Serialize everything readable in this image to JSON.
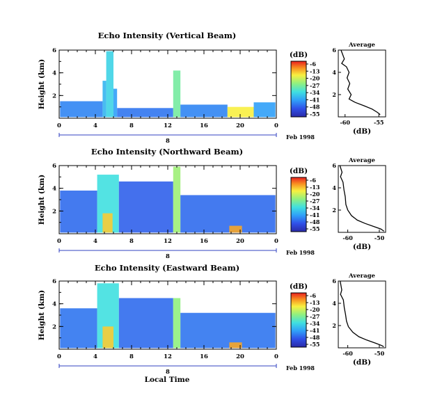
{
  "chart_data": [
    {
      "type": "heatmap",
      "title": "Echo Intensity (Vertical Beam)",
      "ylabel": "Height (km)",
      "xlim": [
        0,
        24
      ],
      "ylim": [
        0,
        6
      ],
      "xticks": [
        "0",
        "4",
        "8",
        "12",
        "16",
        "20",
        "0"
      ],
      "yticks": [
        "2",
        "4",
        "6"
      ],
      "date_ticks": [
        "8"
      ],
      "date_label": "Feb 1998",
      "colorbar": {
        "unit": "(dB)",
        "ticks": [
          "-6",
          "-13",
          "-20",
          "-27",
          "-34",
          "-41",
          "-48",
          "-55"
        ]
      },
      "cells": [
        {
          "x": [
            0.1,
            4.8
          ],
          "y": [
            0.1,
            1.5
          ],
          "level": 0.25
        },
        {
          "x": [
            4.8,
            5.2
          ],
          "y": [
            0.1,
            3.3
          ],
          "level": 0.35
        },
        {
          "x": [
            5.2,
            6.0
          ],
          "y": [
            0.1,
            5.9
          ],
          "level": 0.42
        },
        {
          "x": [
            6.0,
            6.4
          ],
          "y": [
            0.1,
            2.6
          ],
          "level": 0.3
        },
        {
          "x": [
            6.4,
            12.6
          ],
          "y": [
            0.1,
            0.9
          ],
          "level": 0.22
        },
        {
          "x": [
            12.6,
            13.4
          ],
          "y": [
            0.1,
            4.2
          ],
          "level": 0.55
        },
        {
          "x": [
            13.4,
            18.6
          ],
          "y": [
            0.1,
            1.2
          ],
          "level": 0.25
        },
        {
          "x": [
            18.6,
            21.5
          ],
          "y": [
            0.1,
            1.0
          ],
          "level": 0.75
        },
        {
          "x": [
            21.5,
            23.9
          ],
          "y": [
            0.1,
            1.4
          ],
          "level": 0.3
        }
      ],
      "profile": {
        "title": "Average",
        "xlabel": "(dB)",
        "xticks": [
          "-60",
          "-55"
        ],
        "xlim": [
          -61,
          -54
        ],
        "ylim": [
          0,
          6
        ],
        "yticks": [
          "2",
          "4",
          "6"
        ],
        "points": [
          [
            -60.6,
            6.0
          ],
          [
            -60.1,
            5.2
          ],
          [
            -60.5,
            4.8
          ],
          [
            -59.8,
            4.5
          ],
          [
            -59.4,
            4.0
          ],
          [
            -59.7,
            3.5
          ],
          [
            -59.3,
            3.0
          ],
          [
            -59.6,
            2.5
          ],
          [
            -59.1,
            2.0
          ],
          [
            -59.4,
            1.6
          ],
          [
            -58.5,
            1.3
          ],
          [
            -57.2,
            1.0
          ],
          [
            -56.0,
            0.7
          ],
          [
            -55.2,
            0.4
          ],
          [
            -54.8,
            0.2
          ]
        ]
      }
    },
    {
      "type": "heatmap",
      "title": "Echo Intensity (Northward Beam)",
      "ylabel": "Height (km)",
      "xlim": [
        0,
        24
      ],
      "ylim": [
        0,
        6
      ],
      "xticks": [
        "0",
        "4",
        "8",
        "12",
        "16",
        "20",
        "0"
      ],
      "yticks": [
        "2",
        "4",
        "6"
      ],
      "date_ticks": [
        "8"
      ],
      "date_label": "Feb 1998",
      "colorbar": {
        "unit": "(dB)",
        "ticks": [
          "-6",
          "-13",
          "-20",
          "-27",
          "-34",
          "-41",
          "-48",
          "-55"
        ]
      },
      "cells": [
        {
          "x": [
            0.1,
            4.2
          ],
          "y": [
            0.1,
            3.8
          ],
          "level": 0.2
        },
        {
          "x": [
            4.2,
            6.6
          ],
          "y": [
            0.1,
            5.2
          ],
          "level": 0.45
        },
        {
          "x": [
            4.8,
            5.9
          ],
          "y": [
            0.1,
            1.8
          ],
          "level": 0.8
        },
        {
          "x": [
            6.6,
            12.6
          ],
          "y": [
            0.1,
            4.6
          ],
          "level": 0.18
        },
        {
          "x": [
            12.6,
            13.4
          ],
          "y": [
            0.1,
            5.9
          ],
          "level": 0.62
        },
        {
          "x": [
            13.4,
            23.9
          ],
          "y": [
            0.1,
            3.4
          ],
          "level": 0.2
        },
        {
          "x": [
            18.8,
            20.2
          ],
          "y": [
            0.1,
            0.7
          ],
          "level": 0.85
        }
      ],
      "profile": {
        "title": "Average",
        "xlabel": "(dB)",
        "xticks": [
          "-60",
          "-50"
        ],
        "xlim": [
          -63,
          -48
        ],
        "ylim": [
          0,
          6
        ],
        "yticks": [
          "2",
          "4",
          "6"
        ],
        "points": [
          [
            -62.5,
            6.0
          ],
          [
            -61.8,
            5.4
          ],
          [
            -62.3,
            5.0
          ],
          [
            -61.5,
            4.5
          ],
          [
            -61.2,
            3.8
          ],
          [
            -60.8,
            3.2
          ],
          [
            -60.6,
            2.5
          ],
          [
            -60.0,
            2.0
          ],
          [
            -58.8,
            1.5
          ],
          [
            -57.0,
            1.1
          ],
          [
            -54.5,
            0.8
          ],
          [
            -51.5,
            0.5
          ],
          [
            -49.5,
            0.3
          ],
          [
            -48.5,
            0.1
          ]
        ]
      }
    },
    {
      "type": "heatmap",
      "title": "Echo Intensity (Eastward Beam)",
      "ylabel": "Height (km)",
      "xlabel": "Local Time",
      "xlim": [
        0,
        24
      ],
      "ylim": [
        0,
        6
      ],
      "xticks": [
        "0",
        "4",
        "8",
        "12",
        "16",
        "20",
        "0"
      ],
      "yticks": [
        "2",
        "4",
        "6"
      ],
      "date_ticks": [
        "8"
      ],
      "date_label": "Feb 1998",
      "colorbar": {
        "unit": "(dB)",
        "ticks": [
          "-6",
          "-13",
          "-20",
          "-27",
          "-34",
          "-41",
          "-48",
          "-55"
        ]
      },
      "cells": [
        {
          "x": [
            0.1,
            4.2
          ],
          "y": [
            0.1,
            3.6
          ],
          "level": 0.22
        },
        {
          "x": [
            4.2,
            6.6
          ],
          "y": [
            0.1,
            5.8
          ],
          "level": 0.45
        },
        {
          "x": [
            4.8,
            6.0
          ],
          "y": [
            0.1,
            2.0
          ],
          "level": 0.8
        },
        {
          "x": [
            6.6,
            12.6
          ],
          "y": [
            0.1,
            4.5
          ],
          "level": 0.2
        },
        {
          "x": [
            12.6,
            13.4
          ],
          "y": [
            0.1,
            4.5
          ],
          "level": 0.6
        },
        {
          "x": [
            13.4,
            23.9
          ],
          "y": [
            0.1,
            3.2
          ],
          "level": 0.22
        },
        {
          "x": [
            18.8,
            20.2
          ],
          "y": [
            0.1,
            0.6
          ],
          "level": 0.85
        }
      ],
      "profile": {
        "title": "Average",
        "xlabel": "(dB)",
        "xticks": [
          "-60",
          "-50"
        ],
        "xlim": [
          -63,
          -48
        ],
        "ylim": [
          0,
          6
        ],
        "yticks": [
          "2",
          "4",
          "6"
        ],
        "points": [
          [
            -62.4,
            6.0
          ],
          [
            -61.9,
            5.2
          ],
          [
            -62.3,
            4.8
          ],
          [
            -61.4,
            4.3
          ],
          [
            -61.1,
            3.6
          ],
          [
            -60.7,
            3.0
          ],
          [
            -60.4,
            2.4
          ],
          [
            -59.8,
            1.9
          ],
          [
            -58.4,
            1.4
          ],
          [
            -56.5,
            1.0
          ],
          [
            -54.0,
            0.7
          ],
          [
            -51.0,
            0.4
          ],
          [
            -49.2,
            0.2
          ],
          [
            -48.6,
            0.1
          ]
        ]
      }
    }
  ]
}
